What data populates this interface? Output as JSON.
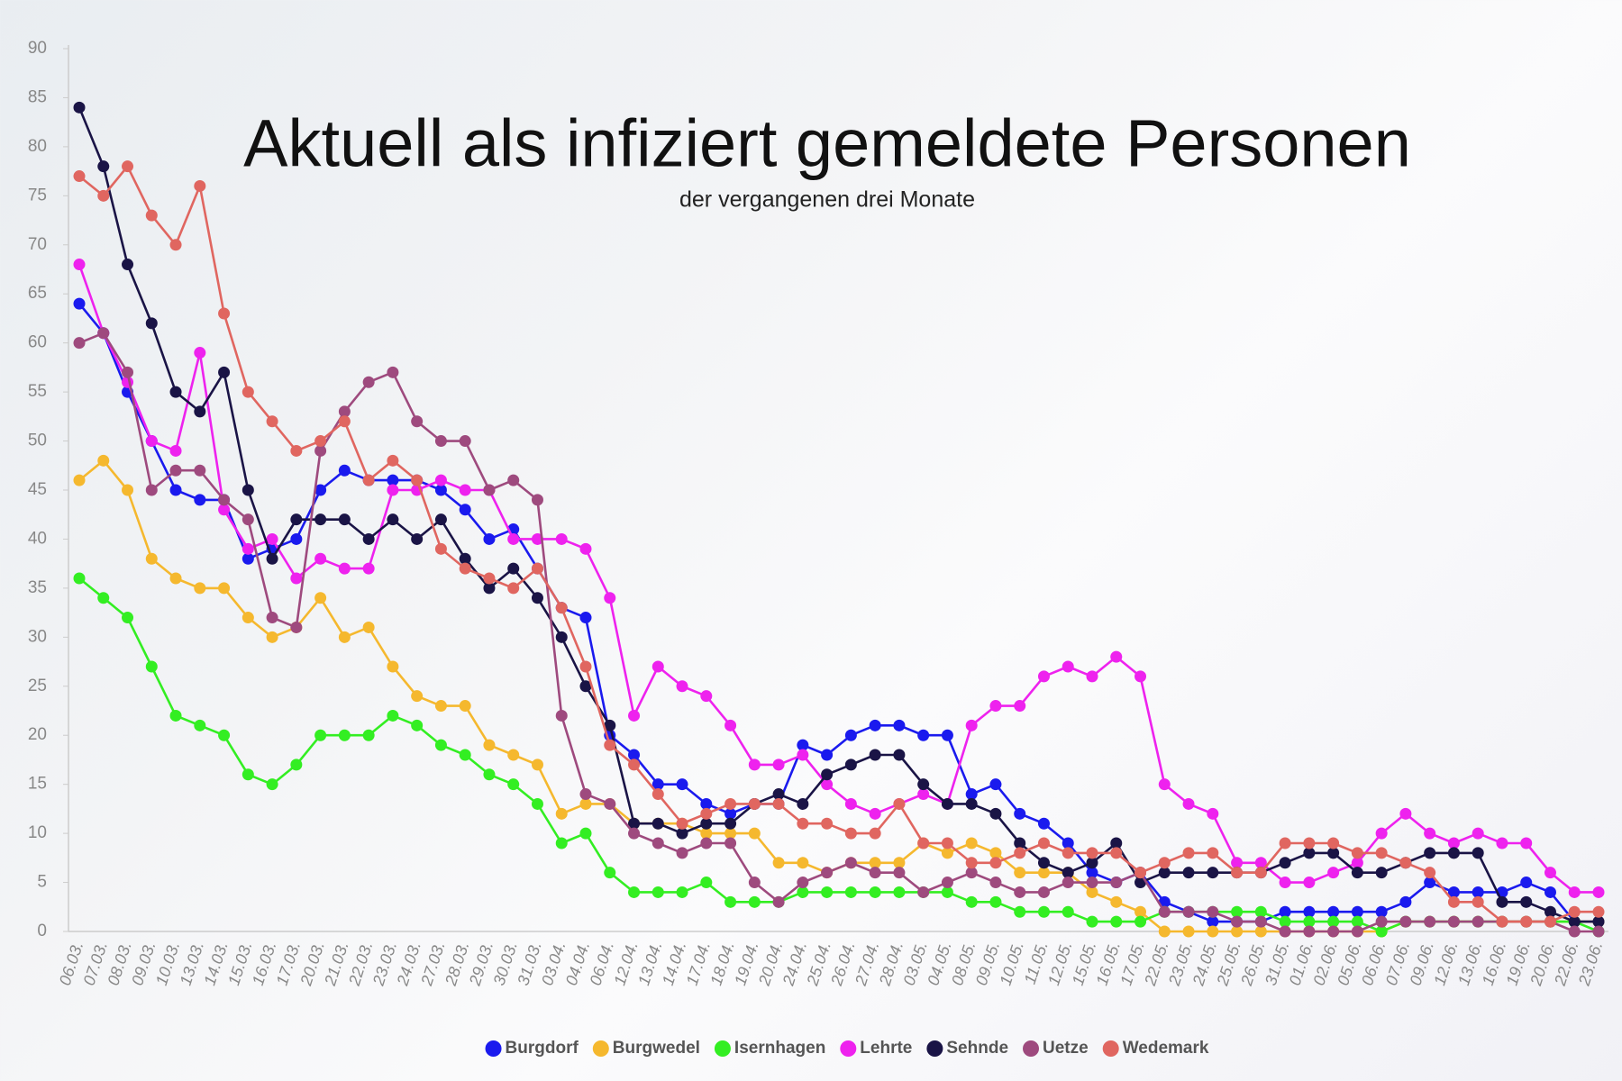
{
  "chart_data": {
    "type": "line",
    "title": "Aktuell als infiziert gemeldete Personen",
    "subtitle": "der vergangenen drei Monate",
    "categories": [
      "06.03.",
      "07.03.",
      "08.03.",
      "09.03.",
      "10.03.",
      "13.03.",
      "14.03.",
      "15.03.",
      "16.03.",
      "17.03.",
      "20.03.",
      "21.03.",
      "22.03.",
      "23.03.",
      "24.03.",
      "27.03.",
      "28.03.",
      "29.03.",
      "30.03.",
      "31.03.",
      "03.04.",
      "04.04.",
      "06.04.",
      "12.04.",
      "13.04.",
      "14.04.",
      "17.04.",
      "18.04.",
      "19.04.",
      "20.04.",
      "24.04.",
      "25.04.",
      "26.04.",
      "27.04.",
      "28.04.",
      "03.05.",
      "04.05.",
      "08.05.",
      "09.05.",
      "10.05.",
      "11.05.",
      "12.05.",
      "15.05.",
      "16.05.",
      "17.05.",
      "22.05.",
      "23.05.",
      "24.05.",
      "25.05.",
      "26.05.",
      "31.05.",
      "01.06.",
      "02.06.",
      "05.06.",
      "06.06.",
      "07.06.",
      "09.06.",
      "12.06.",
      "13.06.",
      "16.06.",
      "19.06.",
      "20.06.",
      "22.06.",
      "23.06."
    ],
    "ylim": [
      0,
      90
    ],
    "yticks": [
      0,
      5,
      10,
      15,
      20,
      25,
      30,
      35,
      40,
      45,
      50,
      55,
      60,
      65,
      70,
      75,
      80,
      85,
      90
    ],
    "grid": false,
    "legend": "bottom",
    "series": [
      {
        "name": "Burgdorf",
        "color": "#1a1aee",
        "values": [
          64,
          61,
          55,
          50,
          45,
          44,
          44,
          38,
          39,
          40,
          45,
          47,
          46,
          46,
          46,
          45,
          43,
          40,
          41,
          37,
          33,
          32,
          20,
          18,
          15,
          15,
          13,
          12,
          13,
          13,
          19,
          18,
          20,
          21,
          21,
          20,
          20,
          14,
          15,
          12,
          11,
          9,
          6,
          5,
          6,
          3,
          2,
          1,
          1,
          1,
          2,
          2,
          2,
          2,
          2,
          3,
          5,
          4,
          4,
          4,
          5,
          4,
          1,
          1
        ]
      },
      {
        "name": "Burgwedel",
        "color": "#f5b82e",
        "values": [
          46,
          48,
          45,
          38,
          36,
          35,
          35,
          32,
          30,
          31,
          34,
          30,
          31,
          27,
          24,
          23,
          23,
          19,
          18,
          17,
          12,
          13,
          13,
          11,
          11,
          11,
          10,
          10,
          10,
          7,
          7,
          6,
          7,
          7,
          7,
          9,
          8,
          9,
          8,
          6,
          6,
          6,
          4,
          3,
          2,
          0,
          0,
          0,
          0,
          0,
          0,
          0,
          0,
          0,
          0,
          1,
          1,
          1,
          1,
          1,
          1,
          1,
          1,
          1
        ]
      },
      {
        "name": "Isernhagen",
        "color": "#33ee22",
        "values": [
          36,
          34,
          32,
          27,
          22,
          21,
          20,
          16,
          15,
          17,
          20,
          20,
          20,
          22,
          21,
          19,
          18,
          16,
          15,
          13,
          9,
          10,
          6,
          4,
          4,
          4,
          5,
          3,
          3,
          3,
          4,
          4,
          4,
          4,
          4,
          4,
          4,
          3,
          3,
          2,
          2,
          2,
          1,
          1,
          1,
          2,
          2,
          2,
          2,
          2,
          1,
          1,
          1,
          1,
          0,
          1,
          1,
          1,
          1,
          1,
          1,
          1,
          1,
          0
        ]
      },
      {
        "name": "Lehrte",
        "color": "#ee22ee",
        "values": [
          68,
          61,
          56,
          50,
          49,
          59,
          43,
          39,
          40,
          36,
          38,
          37,
          37,
          45,
          45,
          46,
          45,
          45,
          40,
          40,
          40,
          39,
          34,
          22,
          27,
          25,
          24,
          21,
          17,
          17,
          18,
          15,
          13,
          12,
          13,
          14,
          13,
          21,
          23,
          23,
          26,
          27,
          26,
          28,
          26,
          15,
          13,
          12,
          7,
          7,
          5,
          5,
          6,
          7,
          10,
          12,
          10,
          9,
          10,
          9,
          9,
          6,
          4,
          4
        ]
      },
      {
        "name": "Sehnde",
        "color": "#1a1446",
        "values": [
          84,
          78,
          68,
          62,
          55,
          53,
          57,
          45,
          38,
          42,
          42,
          42,
          40,
          42,
          40,
          42,
          38,
          35,
          37,
          34,
          30,
          25,
          21,
          11,
          11,
          10,
          11,
          11,
          13,
          14,
          13,
          16,
          17,
          18,
          18,
          15,
          13,
          13,
          12,
          9,
          7,
          6,
          7,
          9,
          5,
          6,
          6,
          6,
          6,
          6,
          7,
          8,
          8,
          6,
          6,
          7,
          8,
          8,
          8,
          3,
          3,
          2,
          1,
          1
        ]
      },
      {
        "name": "Uetze",
        "color": "#9e4a7e",
        "values": [
          60,
          61,
          57,
          45,
          47,
          47,
          44,
          42,
          32,
          31,
          49,
          53,
          56,
          57,
          52,
          50,
          50,
          45,
          46,
          44,
          22,
          14,
          13,
          10,
          9,
          8,
          9,
          9,
          5,
          3,
          5,
          6,
          7,
          6,
          6,
          4,
          5,
          6,
          5,
          4,
          4,
          5,
          5,
          5,
          6,
          2,
          2,
          2,
          1,
          1,
          0,
          0,
          0,
          0,
          1,
          1,
          1,
          1,
          1,
          1,
          1,
          1,
          0,
          0
        ]
      },
      {
        "name": "Wedemark",
        "color": "#e06660",
        "values": [
          77,
          75,
          78,
          73,
          70,
          76,
          63,
          55,
          52,
          49,
          50,
          52,
          46,
          48,
          46,
          39,
          37,
          36,
          35,
          37,
          33,
          27,
          19,
          17,
          14,
          11,
          12,
          13,
          13,
          13,
          11,
          11,
          10,
          10,
          13,
          9,
          9,
          7,
          7,
          8,
          9,
          8,
          8,
          8,
          6,
          7,
          8,
          8,
          6,
          6,
          9,
          9,
          9,
          8,
          8,
          7,
          6,
          3,
          3,
          1,
          1,
          1,
          2,
          2
        ]
      }
    ]
  }
}
